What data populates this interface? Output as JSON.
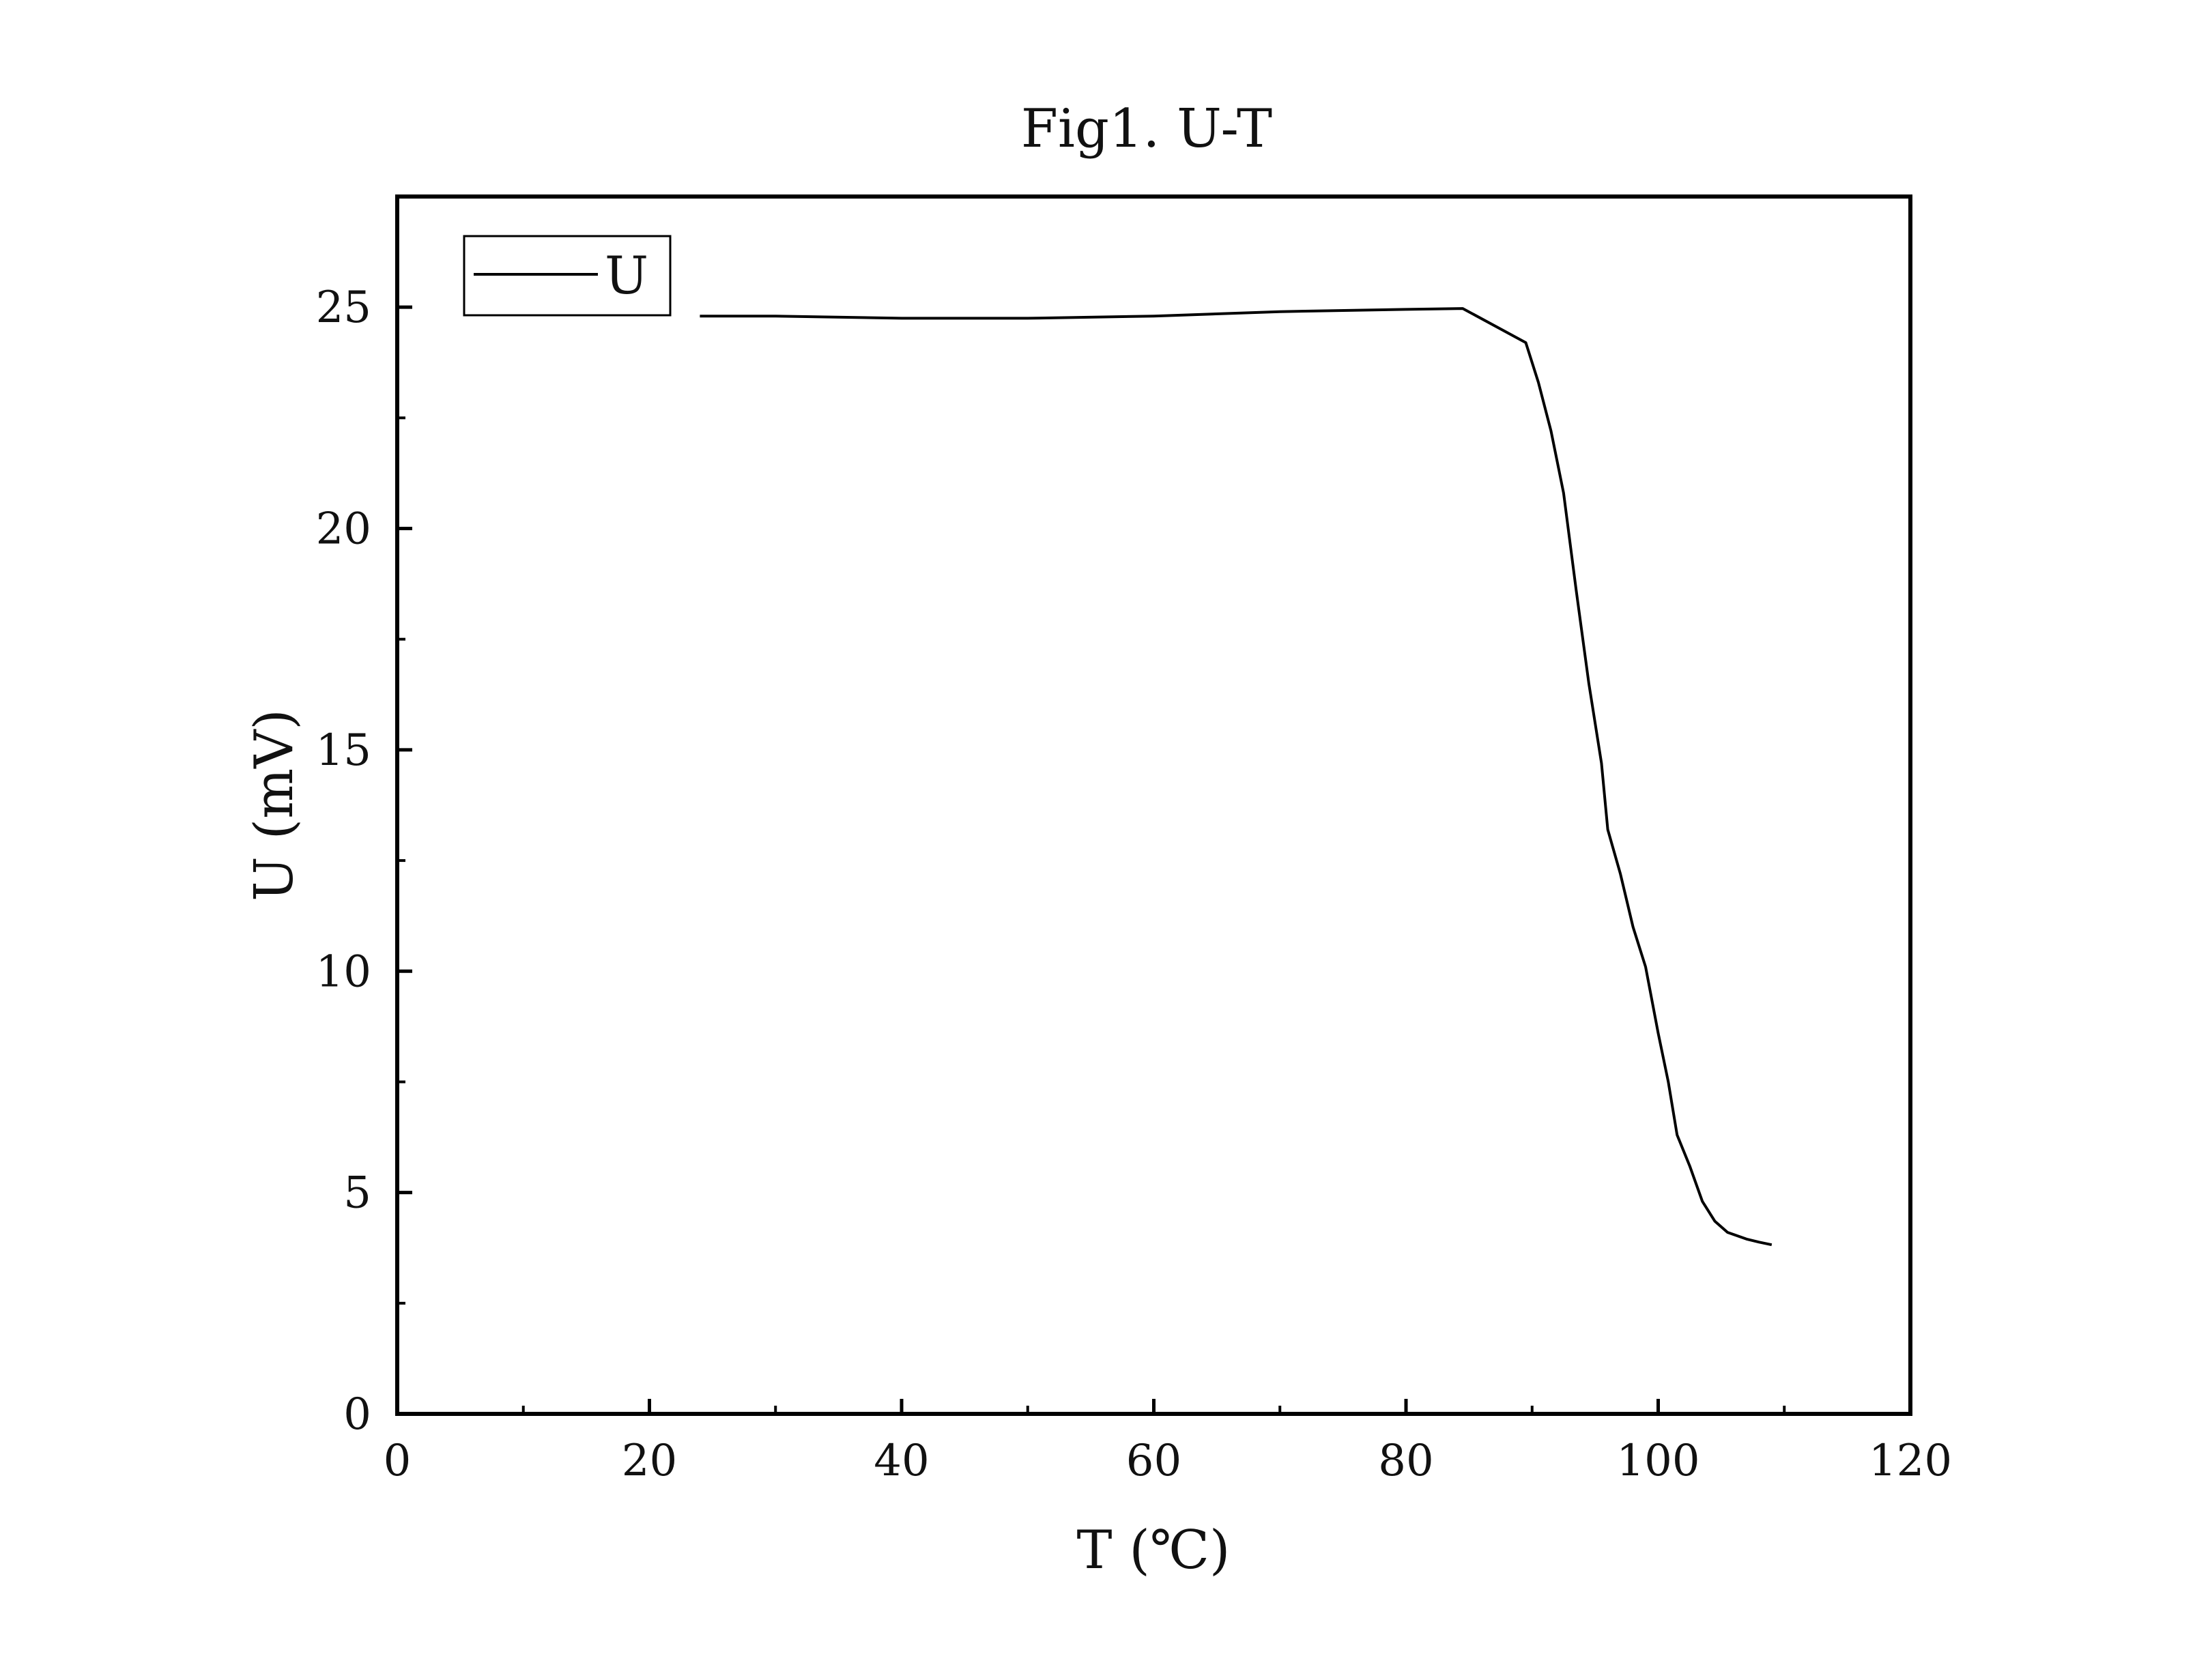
{
  "chart_data": {
    "type": "line",
    "title": "Fig1. U-T",
    "xlabel": "T (℃)",
    "ylabel": "U (mV)",
    "xlim": [
      0,
      120
    ],
    "ylim": [
      0,
      27.5
    ],
    "x_ticks": [
      0,
      20,
      40,
      60,
      80,
      100,
      120
    ],
    "x_tick_labels": [
      "0",
      "20",
      "40",
      "60",
      "80",
      "100",
      "120"
    ],
    "x_minor_ticks": [
      10,
      30,
      50,
      70,
      90,
      110
    ],
    "y_ticks": [
      0,
      5,
      10,
      15,
      20,
      25
    ],
    "y_tick_labels": [
      "0",
      "5",
      "10",
      "15",
      "20",
      "25"
    ],
    "y_minor_ticks": [
      2.5,
      7.5,
      12.5,
      17.5,
      22.5
    ],
    "grid": false,
    "legend": {
      "position": "top-left",
      "entries": [
        "U"
      ]
    },
    "series": [
      {
        "name": "U",
        "color": "#000000",
        "x": [
          24,
          30,
          40,
          50,
          60,
          70,
          80,
          84.5,
          89.5,
          90.5,
          91.5,
          92.5,
          93.5,
          94.5,
          95.5,
          96,
          97,
          98,
          99,
          100,
          100.8,
          101.5,
          102.5,
          103.5,
          104.5,
          105.5,
          107,
          108,
          109
        ],
        "y": [
          24.8,
          24.8,
          24.75,
          24.75,
          24.8,
          24.9,
          24.95,
          24.97,
          24.2,
          23.3,
          22.2,
          20.8,
          18.6,
          16.5,
          14.7,
          13.2,
          12.2,
          11.0,
          10.1,
          8.6,
          7.5,
          6.3,
          5.6,
          4.8,
          4.35,
          4.1,
          3.95,
          3.88,
          3.82
        ]
      }
    ]
  }
}
